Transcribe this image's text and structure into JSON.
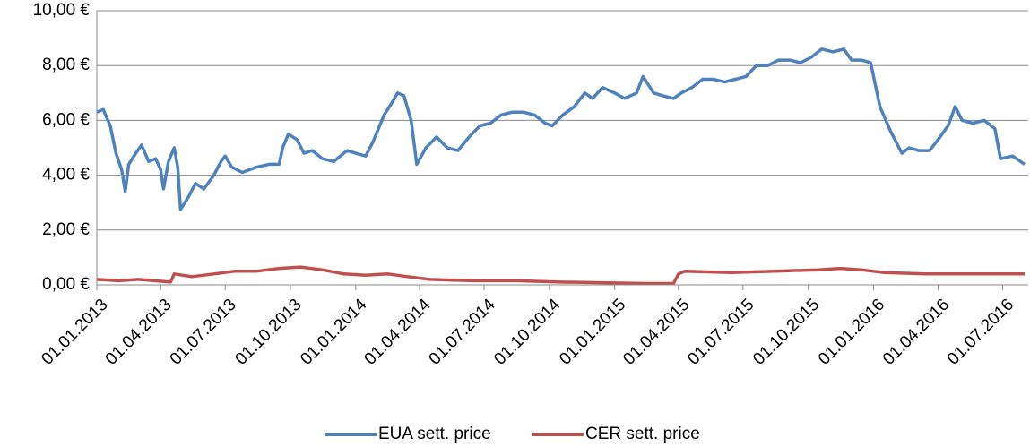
{
  "chart_data": {
    "type": "line",
    "series": [
      {
        "name": "EUA sett. price",
        "color": "#4f81bd",
        "x": [
          "2013-01-01",
          "2013-01-10",
          "2013-01-20",
          "2013-01-28",
          "2013-02-05",
          "2013-02-10",
          "2013-02-15",
          "2013-02-25",
          "2013-03-05",
          "2013-03-15",
          "2013-03-25",
          "2013-04-01",
          "2013-04-05",
          "2013-04-12",
          "2013-04-20",
          "2013-04-25",
          "2013-04-29",
          "2013-05-10",
          "2013-05-20",
          "2013-06-01",
          "2013-06-15",
          "2013-06-25",
          "2013-07-01",
          "2013-07-10",
          "2013-07-25",
          "2013-08-15",
          "2013-09-01",
          "2013-09-15",
          "2013-09-20",
          "2013-09-28",
          "2013-10-10",
          "2013-10-20",
          "2013-11-01",
          "2013-11-15",
          "2013-12-01",
          "2013-12-15",
          "2013-12-20",
          "2014-01-01",
          "2014-01-15",
          "2014-01-25",
          "2014-02-10",
          "2014-02-20",
          "2014-03-01",
          "2014-03-10",
          "2014-03-20",
          "2014-03-28",
          "2014-04-10",
          "2014-04-25",
          "2014-05-10",
          "2014-05-25",
          "2014-06-10",
          "2014-06-25",
          "2014-07-10",
          "2014-07-25",
          "2014-08-10",
          "2014-08-25",
          "2014-09-10",
          "2014-09-25",
          "2014-10-05",
          "2014-10-20",
          "2014-11-05",
          "2014-11-20",
          "2014-12-01",
          "2014-12-15",
          "2015-01-01",
          "2015-01-15",
          "2015-02-01",
          "2015-02-10",
          "2015-02-25",
          "2015-03-10",
          "2015-03-25",
          "2015-04-05",
          "2015-04-20",
          "2015-05-05",
          "2015-05-20",
          "2015-06-05",
          "2015-06-20",
          "2015-07-05",
          "2015-07-20",
          "2015-08-05",
          "2015-08-20",
          "2015-09-05",
          "2015-09-20",
          "2015-10-05",
          "2015-10-20",
          "2015-11-05",
          "2015-11-20",
          "2015-12-01",
          "2015-12-15",
          "2015-12-28",
          "2016-01-10",
          "2016-01-25",
          "2016-02-10",
          "2016-02-20",
          "2016-03-05",
          "2016-03-20",
          "2016-04-01",
          "2016-04-15",
          "2016-04-25",
          "2016-05-05",
          "2016-05-20",
          "2016-06-05",
          "2016-06-20",
          "2016-06-28",
          "2016-07-15",
          "2016-08-01"
        ],
        "values": [
          6.3,
          6.4,
          5.8,
          4.8,
          4.2,
          3.4,
          4.4,
          4.8,
          5.1,
          4.5,
          4.6,
          4.2,
          3.5,
          4.5,
          5.0,
          4.3,
          2.75,
          3.2,
          3.7,
          3.5,
          4.0,
          4.5,
          4.7,
          4.3,
          4.1,
          4.3,
          4.4,
          4.4,
          5.0,
          5.5,
          5.3,
          4.8,
          4.9,
          4.6,
          4.5,
          4.8,
          4.9,
          4.8,
          4.7,
          5.2,
          6.2,
          6.6,
          7.0,
          6.9,
          6.0,
          4.4,
          5.0,
          5.4,
          5.0,
          4.9,
          5.4,
          5.8,
          5.9,
          6.2,
          6.3,
          6.3,
          6.2,
          5.9,
          5.8,
          6.2,
          6.5,
          7.0,
          6.8,
          7.2,
          7.0,
          6.8,
          7.0,
          7.6,
          7.0,
          6.9,
          6.8,
          7.0,
          7.2,
          7.5,
          7.5,
          7.4,
          7.5,
          7.6,
          8.0,
          8.0,
          8.2,
          8.2,
          8.1,
          8.3,
          8.6,
          8.5,
          8.6,
          8.2,
          8.2,
          8.1,
          6.5,
          5.6,
          4.8,
          5.0,
          4.9,
          4.9,
          5.3,
          5.8,
          6.5,
          6.0,
          5.9,
          6.0,
          5.7,
          4.6,
          4.7,
          4.4
        ]
      },
      {
        "name": "CER sett. price",
        "color": "#c0504d",
        "x": [
          "2013-01-01",
          "2013-02-01",
          "2013-03-01",
          "2013-04-15",
          "2013-04-20",
          "2013-05-15",
          "2013-06-15",
          "2013-07-15",
          "2013-08-15",
          "2013-09-15",
          "2013-10-15",
          "2013-11-15",
          "2013-12-15",
          "2014-01-15",
          "2014-02-15",
          "2014-03-15",
          "2014-04-15",
          "2014-06-15",
          "2014-08-15",
          "2014-10-15",
          "2014-12-15",
          "2015-02-15",
          "2015-03-25",
          "2015-04-01",
          "2015-04-10",
          "2015-06-15",
          "2015-08-15",
          "2015-10-15",
          "2015-11-15",
          "2015-12-15",
          "2016-01-15",
          "2016-03-15",
          "2016-05-15",
          "2016-08-01"
        ],
        "values": [
          0.2,
          0.15,
          0.2,
          0.1,
          0.4,
          0.3,
          0.4,
          0.5,
          0.5,
          0.6,
          0.65,
          0.55,
          0.4,
          0.35,
          0.4,
          0.3,
          0.2,
          0.15,
          0.15,
          0.1,
          0.08,
          0.05,
          0.05,
          0.4,
          0.5,
          0.45,
          0.5,
          0.55,
          0.6,
          0.55,
          0.45,
          0.4,
          0.4,
          0.4
        ]
      }
    ],
    "xlim": [
      "2013-01-01",
      "2016-08-06"
    ],
    "xticks": [
      {
        "value": "2013-01-01",
        "label": "01.01.2013"
      },
      {
        "value": "2013-04-01",
        "label": "01.04.2013"
      },
      {
        "value": "2013-07-01",
        "label": "01.07.2013"
      },
      {
        "value": "2013-10-01",
        "label": "01.10.2013"
      },
      {
        "value": "2014-01-01",
        "label": "01.01.2014"
      },
      {
        "value": "2014-04-01",
        "label": "01.04.2014"
      },
      {
        "value": "2014-07-01",
        "label": "01.07.2014"
      },
      {
        "value": "2014-10-01",
        "label": "01.10.2014"
      },
      {
        "value": "2015-01-01",
        "label": "01.01.2015"
      },
      {
        "value": "2015-04-01",
        "label": "01.04.2015"
      },
      {
        "value": "2015-07-01",
        "label": "01.07.2015"
      },
      {
        "value": "2015-10-01",
        "label": "01.10.2015"
      },
      {
        "value": "2016-01-01",
        "label": "01.01.2016"
      },
      {
        "value": "2016-04-01",
        "label": "01.04.2016"
      },
      {
        "value": "2016-07-01",
        "label": "01.07.2016"
      }
    ],
    "ylim": [
      0,
      10
    ],
    "yticks": [
      {
        "value": 0,
        "label": "0,00 €"
      },
      {
        "value": 2,
        "label": "2,00 €"
      },
      {
        "value": 4,
        "label": "4,00 €"
      },
      {
        "value": 6,
        "label": "6,00 €"
      },
      {
        "value": 8,
        "label": "8,00 €"
      },
      {
        "value": 10,
        "label": "10,00 €"
      }
    ],
    "grid": true,
    "legend": "bottom"
  }
}
